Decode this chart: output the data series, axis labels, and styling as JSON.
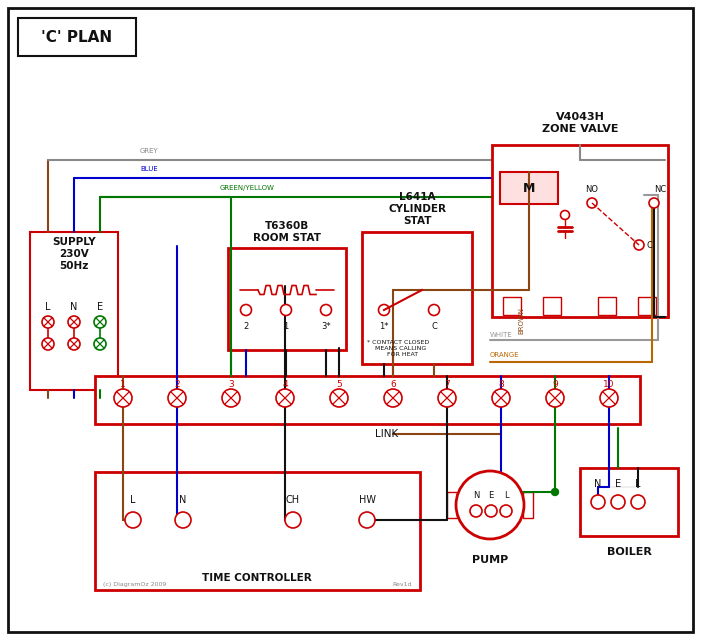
{
  "title": "'C' PLAN",
  "zone_valve_label": "V4043H\nZONE VALVE",
  "room_stat_label": "T6360B\nROOM STAT",
  "cyl_stat_label": "L641A\nCYLINDER\nSTAT",
  "supply_label": "SUPPLY\n230V\n50Hz",
  "tc_label": "TIME CONTROLLER",
  "pump_label": "PUMP",
  "boiler_label": "BOILER",
  "link_label": "LINK",
  "copyright": "(c) DiagramOz 2009",
  "rev": "Rev1d",
  "note": "* CONTACT CLOSED\n  MEANS CALLING\n    FOR HEAT",
  "colors": {
    "red": "#cc0000",
    "blue": "#0000cc",
    "green": "#007700",
    "brown": "#8B4513",
    "grey": "#888888",
    "orange": "#bb6600",
    "black": "#111111",
    "white_wire": "#999999",
    "light_red": "#ffe0e0"
  }
}
